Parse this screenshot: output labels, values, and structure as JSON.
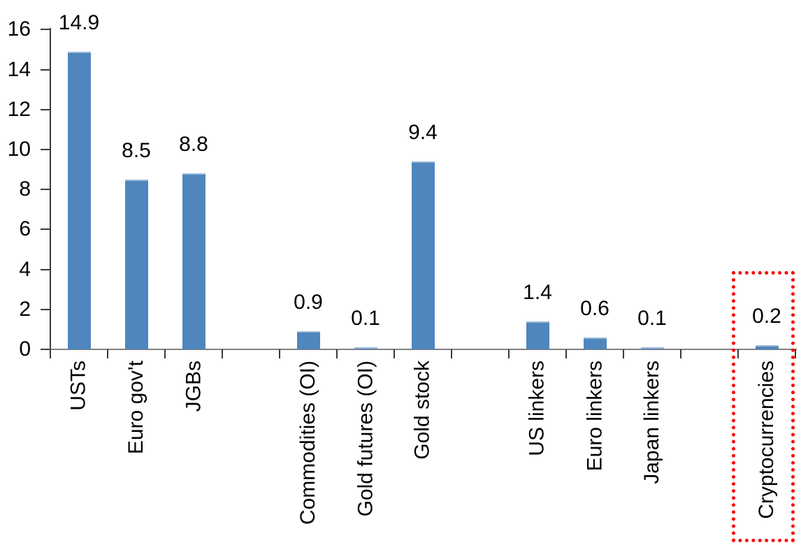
{
  "chart_data": {
    "type": "bar",
    "title": "",
    "xlabel": "",
    "ylabel": "",
    "ylim": [
      0,
      16
    ],
    "y_tick_step": 2,
    "y_tick_labels": [
      "0",
      "2",
      "4",
      "6",
      "8",
      "10",
      "12",
      "14",
      "16"
    ],
    "grid": false,
    "legend": false,
    "bar_color": "#4E86BD",
    "categories": [
      "USTs",
      "Euro gov't",
      "JGBs",
      "Commodities (OI)",
      "Gold futures (OI)",
      "Gold stock",
      "US linkers",
      "Euro linkers",
      "Japan linkers",
      "Cryptocurrencies"
    ],
    "values": [
      14.9,
      8.5,
      8.8,
      0.9,
      0.1,
      9.4,
      1.4,
      0.6,
      0.1,
      0.2
    ],
    "value_labels": [
      "14.9",
      "8.5",
      "8.8",
      "0.9",
      "0.1",
      "9.4",
      "1.4",
      "0.6",
      "0.1",
      "0.2"
    ],
    "slots": [
      0,
      1,
      2,
      4,
      5,
      6,
      8,
      9,
      10,
      12
    ],
    "total_slots": 13,
    "category_label_rotation_deg": 90,
    "value_labels_shown": true,
    "highlight": {
      "category": "Cryptocurrencies",
      "style": "dotted-box",
      "color": "#FF0000"
    }
  }
}
